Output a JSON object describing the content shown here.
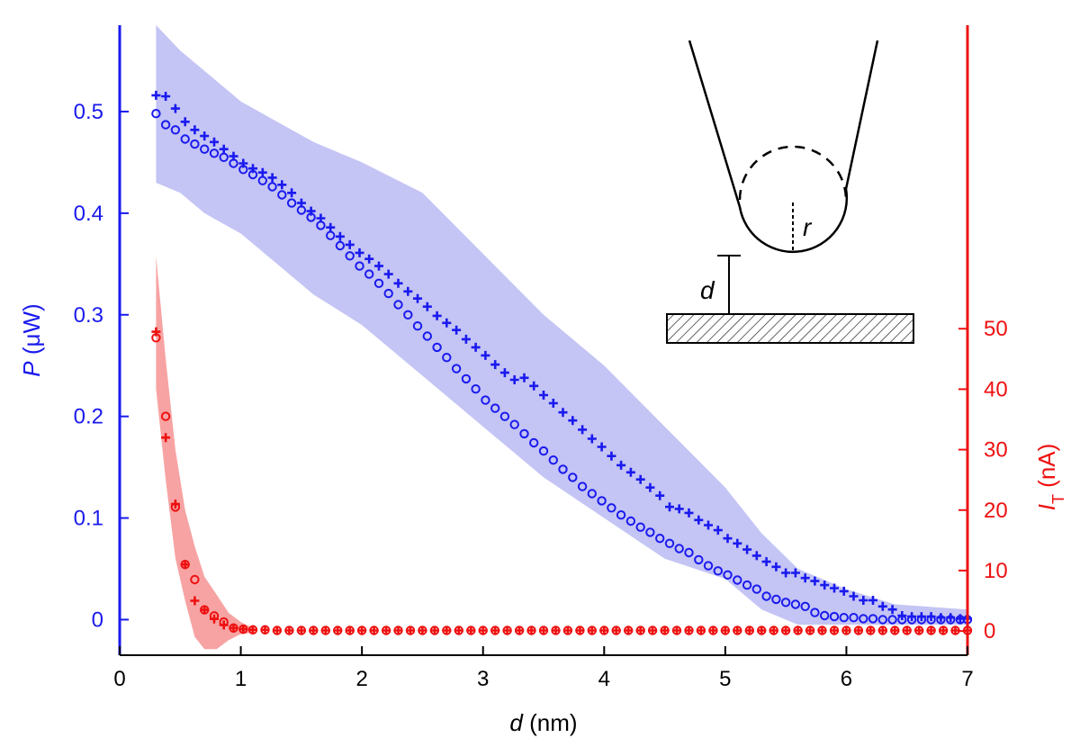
{
  "chart_data": {
    "type": "scatter",
    "xlabel": {
      "symbol": "d",
      "unit": " (nm)"
    },
    "ylabel_left": {
      "symbol": "P",
      "unit": " (μW)"
    },
    "ylabel_right": {
      "symbol": "I",
      "subscript": "T",
      "unit": " (nA)"
    },
    "xlim": [
      0,
      7
    ],
    "ylim_left": [
      -0.035,
      0.585
    ],
    "ylim_right": [
      -4.0,
      100.2
    ],
    "x_ticks": [
      0,
      1,
      2,
      3,
      4,
      5,
      6,
      7
    ],
    "left_ticks": [
      0,
      0.1,
      0.2,
      0.3,
      0.4,
      0.5
    ],
    "right_ticks": [
      0,
      10,
      20,
      30,
      40,
      50
    ],
    "colors": {
      "left_axis": "#1a1aee",
      "right_axis": "#ee1111",
      "blue_band": "#c4c4f5",
      "red_band": "#f7a3a3"
    },
    "series": [
      {
        "axis": "left",
        "marker": "plus",
        "color": "#1a1aee",
        "x": [
          0.3,
          0.38,
          0.46,
          0.54,
          0.62,
          0.7,
          0.78,
          0.86,
          0.94,
          1.02,
          1.1,
          1.18,
          1.26,
          1.34,
          1.42,
          1.5,
          1.58,
          1.66,
          1.74,
          1.82,
          1.9,
          1.98,
          2.06,
          2.14,
          2.22,
          2.3,
          2.38,
          2.46,
          2.54,
          2.62,
          2.7,
          2.78,
          2.86,
          2.94,
          3.02,
          3.1,
          3.18,
          3.26,
          3.34,
          3.42,
          3.5,
          3.58,
          3.66,
          3.74,
          3.82,
          3.9,
          3.98,
          4.06,
          4.14,
          4.22,
          4.3,
          4.38,
          4.46,
          4.54,
          4.62,
          4.7,
          4.78,
          4.86,
          4.94,
          5.02,
          5.1,
          5.18,
          5.26,
          5.34,
          5.42,
          5.5,
          5.58,
          5.66,
          5.74,
          5.82,
          5.9,
          5.98,
          6.06,
          6.14,
          6.22,
          6.3,
          6.38,
          6.46,
          6.54,
          6.62,
          6.7,
          6.78,
          6.86,
          6.94,
          7.0
        ],
        "y": [
          0.516,
          0.515,
          0.503,
          0.49,
          0.482,
          0.476,
          0.47,
          0.463,
          0.456,
          0.449,
          0.444,
          0.44,
          0.435,
          0.428,
          0.42,
          0.41,
          0.402,
          0.395,
          0.386,
          0.377,
          0.369,
          0.361,
          0.355,
          0.348,
          0.34,
          0.331,
          0.323,
          0.316,
          0.308,
          0.299,
          0.292,
          0.285,
          0.276,
          0.268,
          0.26,
          0.251,
          0.243,
          0.236,
          0.238,
          0.23,
          0.221,
          0.213,
          0.204,
          0.196,
          0.187,
          0.178,
          0.17,
          0.161,
          0.152,
          0.145,
          0.138,
          0.13,
          0.122,
          0.111,
          0.109,
          0.105,
          0.098,
          0.093,
          0.088,
          0.08,
          0.075,
          0.069,
          0.063,
          0.057,
          0.052,
          0.046,
          0.046,
          0.041,
          0.038,
          0.034,
          0.031,
          0.028,
          0.023,
          0.019,
          0.019,
          0.013,
          0.01,
          0.004,
          0.003,
          0.003,
          0.003,
          0.002,
          0.002,
          0.001,
          0.001
        ]
      },
      {
        "axis": "left",
        "marker": "circle",
        "color": "#1a1aee",
        "x": [
          0.3,
          0.38,
          0.46,
          0.54,
          0.62,
          0.7,
          0.78,
          0.86,
          0.94,
          1.02,
          1.1,
          1.18,
          1.26,
          1.34,
          1.42,
          1.5,
          1.58,
          1.66,
          1.74,
          1.82,
          1.9,
          1.98,
          2.06,
          2.14,
          2.22,
          2.3,
          2.38,
          2.46,
          2.54,
          2.62,
          2.7,
          2.78,
          2.86,
          2.94,
          3.02,
          3.1,
          3.18,
          3.26,
          3.34,
          3.42,
          3.5,
          3.58,
          3.66,
          3.74,
          3.82,
          3.9,
          3.98,
          4.06,
          4.14,
          4.22,
          4.3,
          4.38,
          4.46,
          4.54,
          4.62,
          4.7,
          4.78,
          4.86,
          4.94,
          5.02,
          5.1,
          5.18,
          5.26,
          5.34,
          5.42,
          5.5,
          5.58,
          5.66,
          5.74,
          5.82,
          5.9,
          5.98,
          6.06,
          6.14,
          6.22,
          6.3,
          6.38,
          6.46,
          6.54,
          6.62,
          6.7,
          6.78,
          6.86,
          6.94,
          7.0
        ],
        "y": [
          0.498,
          0.487,
          0.482,
          0.473,
          0.468,
          0.463,
          0.459,
          0.455,
          0.449,
          0.443,
          0.438,
          0.432,
          0.426,
          0.418,
          0.41,
          0.403,
          0.396,
          0.388,
          0.378,
          0.368,
          0.358,
          0.348,
          0.34,
          0.331,
          0.321,
          0.31,
          0.3,
          0.289,
          0.279,
          0.268,
          0.258,
          0.247,
          0.237,
          0.227,
          0.216,
          0.208,
          0.2,
          0.192,
          0.183,
          0.174,
          0.166,
          0.157,
          0.148,
          0.14,
          0.131,
          0.124,
          0.117,
          0.11,
          0.103,
          0.097,
          0.091,
          0.086,
          0.08,
          0.075,
          0.07,
          0.066,
          0.059,
          0.053,
          0.048,
          0.044,
          0.039,
          0.034,
          0.03,
          0.023,
          0.02,
          0.017,
          0.015,
          0.013,
          0.007,
          0.004,
          0.003,
          0.002,
          0.002,
          0.001,
          0.001,
          0.0,
          0.0,
          0.0,
          0.0,
          0.0,
          0.0,
          0.0,
          0.0,
          0.0,
          0.0
        ]
      },
      {
        "axis": "right",
        "marker": "plus",
        "color": "#ee1111",
        "x": [
          0.3,
          0.38,
          0.46,
          0.54,
          0.62,
          0.7,
          0.78,
          0.86,
          0.94,
          1.02,
          1.1,
          1.2,
          1.3,
          1.4,
          1.5,
          1.6,
          1.7,
          1.8,
          1.9,
          2.0,
          2.1,
          2.2,
          2.3,
          2.4,
          2.5,
          2.6,
          2.7,
          2.8,
          2.9,
          3.0,
          3.1,
          3.2,
          3.3,
          3.4,
          3.5,
          3.6,
          3.7,
          3.8,
          3.9,
          4.0,
          4.1,
          4.2,
          4.3,
          4.4,
          4.5,
          4.6,
          4.7,
          4.8,
          4.9,
          5.0,
          5.1,
          5.2,
          5.3,
          5.4,
          5.5,
          5.6,
          5.7,
          5.8,
          5.9,
          6.0,
          6.1,
          6.2,
          6.3,
          6.4,
          6.5,
          6.6,
          6.7,
          6.8,
          6.9,
          7.0
        ],
        "y": [
          49.5,
          32.0,
          21.0,
          11.0,
          5.0,
          3.5,
          2.0,
          1.0,
          0.5,
          0.3,
          0.2,
          0.2,
          0.1,
          0.1,
          0.1,
          0.1,
          0.1,
          0.1,
          0.1,
          0.1,
          0.1,
          0.1,
          0.1,
          0.1,
          0.1,
          0.1,
          0.1,
          0.1,
          0.1,
          0.1,
          0.1,
          0.1,
          0.1,
          0.1,
          0.1,
          0.1,
          0.1,
          0.1,
          0.1,
          0.1,
          0.1,
          0.1,
          0.1,
          0.1,
          0.1,
          0.1,
          0.1,
          0.1,
          0.1,
          0.1,
          0.1,
          0.1,
          0.1,
          0.1,
          0.1,
          0.1,
          0.1,
          0.1,
          0.1,
          0.1,
          0.1,
          0.1,
          0.1,
          0.1,
          0.1,
          0.1,
          0.1,
          0.1,
          0.1,
          0.1
        ]
      },
      {
        "axis": "right",
        "marker": "circle",
        "color": "#ee1111",
        "x": [
          0.3,
          0.38,
          0.46,
          0.54,
          0.62,
          0.7,
          0.78,
          0.86,
          0.94,
          1.02,
          1.1,
          1.2,
          1.3,
          1.4,
          1.5,
          1.6,
          1.7,
          1.8,
          1.9,
          2.0,
          2.1,
          2.2,
          2.3,
          2.4,
          2.5,
          2.6,
          2.7,
          2.8,
          2.9,
          3.0,
          3.1,
          3.2,
          3.3,
          3.4,
          3.5,
          3.6,
          3.7,
          3.8,
          3.9,
          4.0,
          4.1,
          4.2,
          4.3,
          4.4,
          4.5,
          4.6,
          4.7,
          4.8,
          4.9,
          5.0,
          5.1,
          5.2,
          5.3,
          5.4,
          5.5,
          5.6,
          5.7,
          5.8,
          5.9,
          6.0,
          6.1,
          6.2,
          6.3,
          6.4,
          6.5,
          6.6,
          6.7,
          6.8,
          6.9,
          7.0
        ],
        "y": [
          48.5,
          35.5,
          20.5,
          11.0,
          8.5,
          3.5,
          2.5,
          1.5,
          0.5,
          0.3,
          0.2,
          0.2,
          0.1,
          0.1,
          0.1,
          0.1,
          0.1,
          0.1,
          0.1,
          0.1,
          0.1,
          0.1,
          0.1,
          0.1,
          0.1,
          0.1,
          0.1,
          0.1,
          0.1,
          0.1,
          0.1,
          0.1,
          0.1,
          0.1,
          0.1,
          0.1,
          0.1,
          0.1,
          0.1,
          0.1,
          0.1,
          0.1,
          0.1,
          0.1,
          0.1,
          0.1,
          0.1,
          0.1,
          0.1,
          0.1,
          0.1,
          0.1,
          0.1,
          0.1,
          0.1,
          0.1,
          0.1,
          0.1,
          0.1,
          0.1,
          0.1,
          0.1,
          0.1,
          0.1,
          0.1,
          0.1,
          0.1,
          0.1,
          0.1,
          0.1
        ]
      }
    ],
    "bands": [
      {
        "axis": "left",
        "color": "#c4c4f5",
        "x": [
          0.3,
          0.5,
          0.7,
          1.0,
          1.3,
          1.6,
          2.0,
          2.5,
          3.0,
          3.5,
          4.0,
          4.5,
          5.0,
          5.3,
          5.6,
          6.0,
          6.4,
          7.0
        ],
        "upper": [
          0.585,
          0.56,
          0.54,
          0.51,
          0.49,
          0.47,
          0.45,
          0.42,
          0.36,
          0.3,
          0.25,
          0.19,
          0.13,
          0.085,
          0.05,
          0.03,
          0.015,
          0.01
        ],
        "lower": [
          0.43,
          0.42,
          0.4,
          0.38,
          0.35,
          0.32,
          0.29,
          0.24,
          0.19,
          0.14,
          0.1,
          0.06,
          0.04,
          0.01,
          -0.005,
          -0.005,
          -0.005,
          -0.005
        ]
      },
      {
        "axis": "right",
        "color": "#f7a3a3",
        "x": [
          0.3,
          0.38,
          0.46,
          0.54,
          0.62,
          0.7,
          0.8,
          0.9,
          1.0,
          1.1
        ],
        "upper": [
          62.0,
          45.0,
          30.0,
          20.0,
          14.0,
          9.0,
          6.0,
          3.0,
          1.5,
          0.5
        ],
        "lower": [
          40.0,
          25.0,
          12.0,
          5.0,
          -1.0,
          -3.0,
          -3.0,
          -1.5,
          -0.5,
          -0.3
        ]
      }
    ],
    "inset": {
      "label_r": "r",
      "label_d": "d"
    }
  }
}
